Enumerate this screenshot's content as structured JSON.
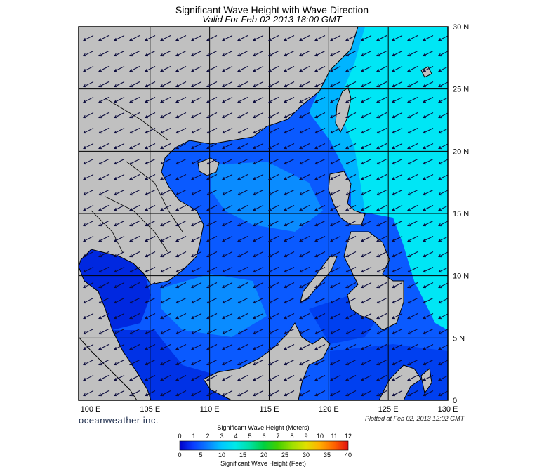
{
  "title": "Significant Wave Height with Wave Direction",
  "subtitle": "Valid For Feb-02-2013 18:00 GMT",
  "branding": "oceanweather inc.",
  "plotted_note": "Plotted at Feb 02, 2013 12:02 GMT",
  "map": {
    "lon_range": [
      99,
      130
    ],
    "lat_range": [
      0,
      30
    ],
    "lon_ticks": [
      "100 E",
      "105 E",
      "110 E",
      "115 E",
      "120 E",
      "125 E",
      "130 E"
    ],
    "lat_ticks": [
      "30 N",
      "25 N",
      "20 N",
      "15 N",
      "10 N",
      "5 N",
      "0"
    ],
    "land_color": "#c0c0c0",
    "wave_direction": "northeast to southwest"
  },
  "colorbar": {
    "meters_label": "Significant Wave Height (Meters)",
    "feet_label": "Significant Wave Height (Feet)",
    "meters_ticks": [
      "0",
      "1",
      "2",
      "3",
      "4",
      "5",
      "6",
      "7",
      "8",
      "9",
      "10",
      "11",
      "12"
    ],
    "feet_ticks": [
      "0",
      "5",
      "10",
      "15",
      "20",
      "25",
      "30",
      "35",
      "40"
    ],
    "colors": [
      "#0000c8",
      "#0a3cff",
      "#0a82ff",
      "#00c8ff",
      "#00e8e8",
      "#00e0a0",
      "#00d040",
      "#40d000",
      "#a0e000",
      "#e0e000",
      "#ffb000",
      "#ff6000",
      "#e01010"
    ]
  }
}
